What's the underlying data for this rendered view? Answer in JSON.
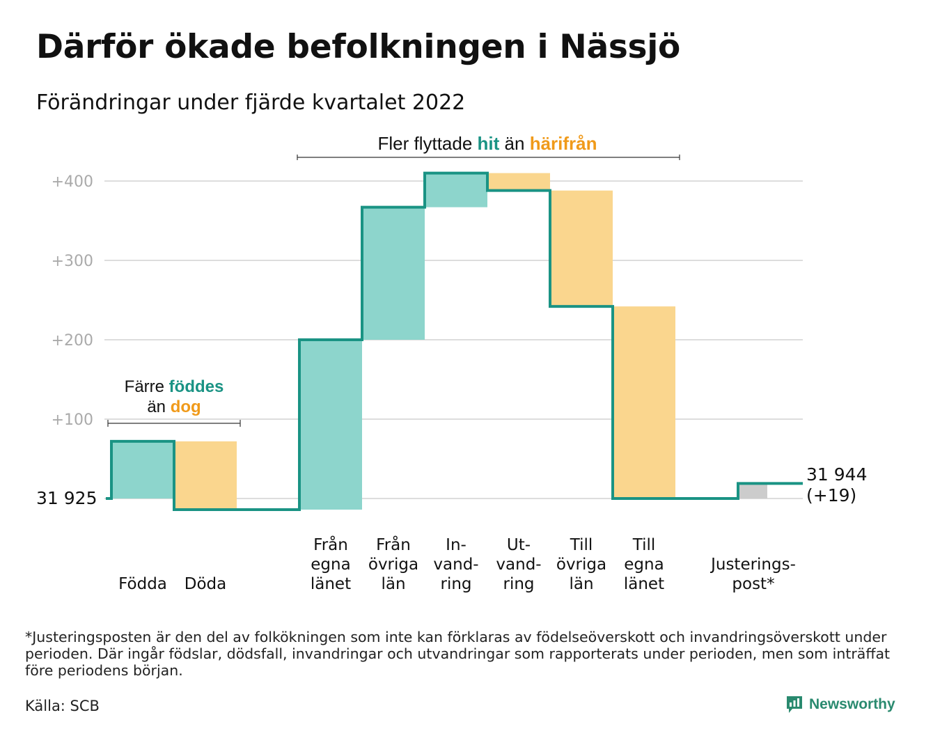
{
  "title": "Därför ökade befolkningen i Nässjö",
  "subtitle": "Förändringar under fjärde kvartalet 2022",
  "footnote": "*Justeringsposten är den del av folkökningen som inte kan förklaras av födelseöverskott och invandringsöverskott under perioden. Där ingår födslar, dödsfall, invandringar och utvandringar som rapporterats under perioden, men som inträffat före periodens början.",
  "source": "Källa: SCB",
  "brand": "Newsworthy",
  "colors": {
    "increase": "#8dd5cc",
    "decrease": "#fad68e",
    "adjustment": "#cccccc",
    "line": "#1a9384",
    "teal_text": "#1a9384",
    "orange_text": "#f09a1a",
    "grid": "#dddddd",
    "tick": "#aaaaaa"
  },
  "annotations": {
    "births": {
      "line1_pre": "Färre ",
      "line1_hl": "föddes",
      "line2_pre": "än ",
      "line2_hl": "dog"
    },
    "migration": {
      "pre": "Fler flyttade ",
      "hl1": "hit",
      "mid": " än ",
      "hl2": "härifrån"
    }
  },
  "start_label": "31 925",
  "end_label_line1": "31 944",
  "end_label_line2": "(+19)",
  "chart_data": {
    "type": "waterfall",
    "start_value": 31925,
    "end_value": 31944,
    "end_change": "+19",
    "y_ticks": [
      "+100",
      "+200",
      "+300",
      "+400"
    ],
    "y_tick_values": [
      100,
      200,
      300,
      400
    ],
    "ylim": [
      -20,
      420
    ],
    "grid": true,
    "steps": [
      {
        "lines": [
          "Födda"
        ],
        "change": 72,
        "kind": "increase"
      },
      {
        "lines": [
          "Döda"
        ],
        "change": -86,
        "kind": "decrease"
      },
      {
        "lines": [],
        "change": 0,
        "kind": "gap"
      },
      {
        "lines": [
          "Från",
          "egna",
          "länet"
        ],
        "change": 214,
        "kind": "increase"
      },
      {
        "lines": [
          "Från",
          "övriga",
          "län"
        ],
        "change": 167,
        "kind": "increase"
      },
      {
        "lines": [
          "In-",
          "vand-",
          "ring"
        ],
        "change": 43,
        "kind": "increase"
      },
      {
        "lines": [
          "Ut-",
          "vand-",
          "ring"
        ],
        "change": -22,
        "kind": "decrease"
      },
      {
        "lines": [
          "Till",
          "övriga",
          "län"
        ],
        "change": -146,
        "kind": "decrease"
      },
      {
        "lines": [
          "Till",
          "egna",
          "länet"
        ],
        "change": -242,
        "kind": "decrease"
      },
      {
        "lines": [],
        "change": 0,
        "kind": "gap"
      },
      {
        "lines": [
          "Justerings-",
          "post*"
        ],
        "change": 19,
        "kind": "adjustment"
      }
    ]
  }
}
